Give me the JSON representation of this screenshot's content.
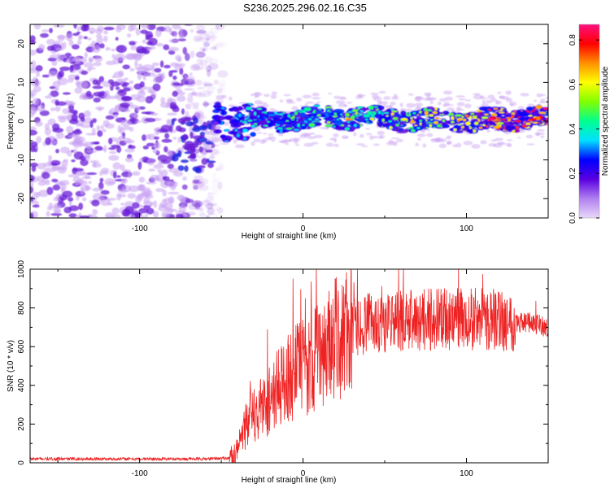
{
  "title": "S236.2025.296.02.16.C35",
  "colors": {
    "snr_line": "#ee2222",
    "dots_light": "#c9a2f2",
    "dots_dark": "#6a1ed8",
    "axis": "#000000"
  },
  "chart_data": [
    {
      "type": "heatmap",
      "name": "spectrogram",
      "xlabel": "Height of straight line (km)",
      "ylabel": "Frequency (Hz)",
      "xlim": [
        -167,
        150
      ],
      "ylim": [
        -25,
        25
      ],
      "xticks": [
        "-100",
        "0",
        "100"
      ],
      "yticks": [
        "-20",
        "-10",
        "0",
        "10",
        "20"
      ],
      "xtick_values": [
        -100,
        0,
        100
      ],
      "ytick_values": [
        -20,
        -10,
        0,
        10,
        20
      ],
      "noise_region_x": [
        -167,
        -55
      ],
      "band_start_x": -55,
      "band_center_freq": 0.5,
      "band_halfwidth_hz": 2.5,
      "colorbar": {
        "label": "Normalized spectral amplitude",
        "range": [
          0.0,
          0.87
        ],
        "ticks": [
          "0.0",
          "0.2",
          "0.4",
          "0.6",
          "0.8"
        ],
        "tick_values": [
          0.0,
          0.2,
          0.4,
          0.6,
          0.8
        ],
        "stops": [
          "#e8d8f8",
          "#b080f0",
          "#5a00e0",
          "#0000ff",
          "#00e0ff",
          "#00ff90",
          "#80ff00",
          "#ffff00",
          "#ff9000",
          "#ff0000",
          "#ff1080"
        ]
      }
    },
    {
      "type": "line",
      "name": "snr",
      "xlabel": "Height of straight line (km)",
      "ylabel": "SNR (10 * v/v)",
      "xlim": [
        -167,
        150
      ],
      "ylim": [
        0,
        1000
      ],
      "xticks": [
        "-100",
        "0",
        "100"
      ],
      "yticks": [
        "0",
        "200",
        "400",
        "600",
        "800",
        "1000"
      ],
      "xtick_values": [
        -100,
        0,
        100
      ],
      "ytick_values": [
        0,
        200,
        400,
        600,
        800,
        1000
      ],
      "envelope_x": [
        -167,
        -60,
        -45,
        -40,
        -35,
        -25,
        -15,
        -10,
        0,
        10,
        20,
        30,
        40,
        60,
        80,
        100,
        120,
        140,
        150
      ],
      "envelope_y": [
        20,
        20,
        25,
        60,
        200,
        290,
        380,
        440,
        490,
        560,
        640,
        690,
        720,
        730,
        740,
        745,
        740,
        720,
        700
      ]
    }
  ]
}
